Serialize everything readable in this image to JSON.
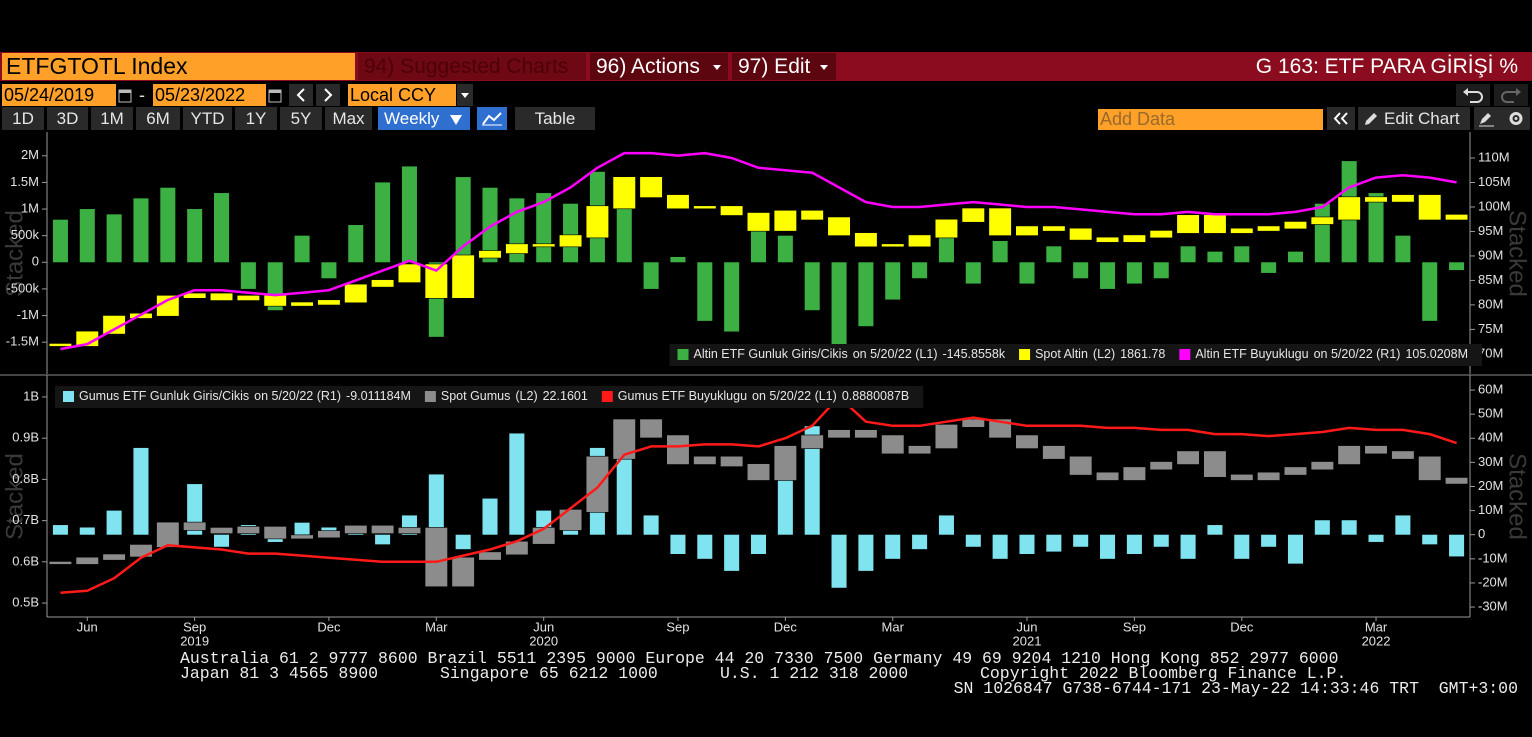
{
  "header": {
    "ticker": "ETFGTOTL Index",
    "suggested": "94) Suggested Charts",
    "actions": "96) Actions",
    "edit": "97) Edit",
    "chart_title": "G 163: ETF PARA GİRİŞİ %"
  },
  "toolbar": {
    "start_date": "05/24/2019",
    "date_separator": "-",
    "end_date": "05/23/2022",
    "currency": "Local CCY",
    "periods": [
      "1D",
      "3D",
      "1M",
      "6M",
      "YTD",
      "1Y",
      "5Y",
      "Max"
    ],
    "frequency": "Weekly",
    "table": "Table",
    "add_data": "Add Data",
    "edit_chart": "Edit Chart"
  },
  "chart_data": [
    {
      "type": "combo",
      "watermark": "Stacked",
      "legend_position": "bottom-right",
      "ylim": [
        -2060000,
        2390000
      ],
      "yticks": [
        {
          "value": -1500000,
          "label": "-1.5M"
        },
        {
          "value": -1000000,
          "label": "-1M"
        },
        {
          "value": -500000,
          "label": "-500k"
        },
        0,
        {
          "value": 500000,
          "label": "500k"
        },
        {
          "value": 1000000,
          "label": "1M"
        },
        {
          "value": 1500000,
          "label": "1.5M"
        },
        {
          "value": 2000000,
          "label": "2M"
        }
      ],
      "y2lim": [
        66300000,
        114700000
      ],
      "y2ticks": [
        {
          "value": 70000000,
          "label": "70M"
        },
        {
          "value": 75000000,
          "label": "75M"
        },
        {
          "value": 80000000,
          "label": "80M"
        },
        {
          "value": 85000000,
          "label": "85M"
        },
        {
          "value": 90000000,
          "label": "90M"
        },
        {
          "value": 95000000,
          "label": "95M"
        },
        {
          "value": 100000000,
          "label": "100M"
        },
        {
          "value": 105000000,
          "label": "105M"
        },
        {
          "value": 110000000,
          "label": "110M"
        }
      ],
      "y3lim": [
        1164,
        2223
      ],
      "series": [
        {
          "name": "Altin ETF Gunluk Giris/Cikis",
          "legend_note": "on 5/20/22 (L1)",
          "last_value_label": "-145.8558k",
          "type": "bar",
          "axis": "y",
          "color": "#3cb043",
          "values": [
            800000,
            1000000,
            900000,
            1200000,
            1400000,
            1000000,
            1300000,
            -500000,
            -900000,
            500000,
            -300000,
            700000,
            1500000,
            1800000,
            -1400000,
            1600000,
            1400000,
            1200000,
            1300000,
            1100000,
            1700000,
            1500000,
            -500000,
            100000,
            -1100000,
            -1300000,
            600000,
            500000,
            -900000,
            -1600000,
            -1200000,
            -700000,
            -300000,
            600000,
            -400000,
            400000,
            -400000,
            300000,
            -300000,
            -500000,
            -400000,
            -300000,
            300000,
            200000,
            300000,
            -200000,
            200000,
            1100000,
            1900000,
            1300000,
            500000,
            -1100000,
            -145855.8
          ]
        },
        {
          "name": "Spot Altin",
          "legend_note": "(L2)",
          "type": "candlestick",
          "axis": "y3",
          "color": "#ffff00",
          "values": [
            1285,
            1340,
            1410,
            1420,
            1500,
            1510,
            1490,
            1500,
            1465,
            1470,
            1480,
            1550,
            1570,
            1640,
            1500,
            1680,
            1700,
            1730,
            1730,
            1770,
            1900,
            2030,
            1950,
            1900,
            1900,
            1870,
            1800,
            1880,
            1850,
            1780,
            1730,
            1730,
            1770,
            1840,
            1890,
            1780,
            1810,
            1800,
            1760,
            1750,
            1770,
            1790,
            1860,
            1790,
            1800,
            1810,
            1830,
            1850,
            1940,
            1930,
            1950,
            1850,
            1861.78
          ]
        },
        {
          "name": "Altin ETF Buyuklugu",
          "legend_note": "on 5/20/22 (R1)",
          "last_value_label": "105.0208M",
          "type": "line",
          "axis": "y2",
          "color": "#ff00ff",
          "values": [
            71000000,
            72000000,
            75000000,
            78000000,
            81000000,
            83000000,
            83000000,
            82500000,
            82000000,
            82500000,
            83000000,
            85000000,
            87000000,
            89000000,
            87000000,
            92000000,
            96000000,
            99000000,
            101000000,
            104000000,
            108000000,
            111000000,
            111000000,
            110500000,
            111000000,
            110000000,
            108000000,
            107500000,
            107000000,
            104000000,
            101000000,
            100000000,
            100000000,
            100500000,
            101000000,
            100500000,
            100000000,
            100000000,
            99500000,
            99000000,
            98500000,
            98500000,
            99000000,
            98500000,
            98500000,
            98500000,
            99000000,
            100000000,
            104000000,
            106000000,
            106500000,
            106000000,
            105020800
          ]
        }
      ]
    },
    {
      "type": "combo",
      "watermark": "Stacked",
      "legend_position": "top-left",
      "ylim": [
        471000000,
        1046000000
      ],
      "yticks": [
        {
          "value": 500000000,
          "label": "0.5B"
        },
        {
          "value": 600000000,
          "label": "0.6B"
        },
        {
          "value": 700000000,
          "label": "0.7B"
        },
        {
          "value": 800000000,
          "label": "0.8B"
        },
        {
          "value": 900000000,
          "label": "0.9B"
        },
        {
          "value": 1000000000,
          "label": "1B"
        }
      ],
      "y2lim": [
        -33300000,
        65000000
      ],
      "y2ticks": [
        {
          "value": -30000000,
          "label": "-30M"
        },
        {
          "value": -20000000,
          "label": "-20M"
        },
        {
          "value": -10000000,
          "label": "-10M"
        },
        0,
        {
          "value": 10000000,
          "label": "10M"
        },
        {
          "value": 20000000,
          "label": "20M"
        },
        {
          "value": 30000000,
          "label": "30M"
        },
        {
          "value": 40000000,
          "label": "40M"
        },
        {
          "value": 50000000,
          "label": "50M"
        },
        {
          "value": 60000000,
          "label": "60M"
        }
      ],
      "y3lim": [
        9.7,
        32
      ],
      "categories": [
        null,
        "Jun",
        null,
        null,
        null,
        "Sep",
        null,
        null,
        null,
        null,
        "Dec",
        null,
        null,
        null,
        "Mar",
        null,
        null,
        null,
        "Jun",
        null,
        null,
        null,
        null,
        "Sep",
        null,
        null,
        null,
        "Dec",
        null,
        null,
        null,
        "Mar",
        null,
        null,
        null,
        null,
        "Jun",
        null,
        null,
        null,
        "Sep",
        null,
        null,
        null,
        "Dec",
        null,
        null,
        null,
        null,
        "Mar",
        null,
        null,
        null
      ],
      "year_categories": [
        null,
        null,
        null,
        null,
        null,
        "2019",
        null,
        null,
        null,
        null,
        null,
        null,
        null,
        null,
        null,
        null,
        null,
        null,
        "2020",
        null,
        null,
        null,
        null,
        null,
        null,
        null,
        null,
        null,
        null,
        null,
        null,
        null,
        null,
        null,
        null,
        null,
        "2021",
        null,
        null,
        null,
        null,
        null,
        null,
        null,
        null,
        null,
        null,
        null,
        null,
        "2022",
        null,
        null,
        null
      ],
      "series": [
        {
          "name": "Gumus ETF Gunluk Giris/Cikis",
          "legend_note": "on 5/20/22 (R1)",
          "last_value_label": "-9.011184M",
          "type": "bar",
          "axis": "y2",
          "color": "#80e4f0",
          "values": [
            4000000,
            3000000,
            10000000,
            36000000,
            4000000,
            21000000,
            -5000000,
            4000000,
            -3000000,
            5000000,
            3000000,
            4000000,
            -4000000,
            8000000,
            25000000,
            -6000000,
            15000000,
            42000000,
            10000000,
            8000000,
            36000000,
            40000000,
            8000000,
            -8000000,
            -10000000,
            -15000000,
            -8000000,
            30000000,
            45000000,
            -22000000,
            -15000000,
            -10000000,
            -6000000,
            8000000,
            -5000000,
            -10000000,
            -8000000,
            -7000000,
            -5000000,
            -10000000,
            -8000000,
            -5000000,
            -10000000,
            4000000,
            -10000000,
            -5000000,
            -12000000,
            6000000,
            6000000,
            -3000000,
            8000000,
            -4000000,
            -9011184
          ]
        },
        {
          "name": "Spot Gumus",
          "legend_note": "(L2)",
          "type": "candlestick",
          "axis": "y3",
          "color": "#8c8c8c",
          "values": [
            14.6,
            15,
            15.3,
            16.2,
            18.3,
            17.8,
            17.5,
            17.9,
            17,
            17.1,
            17.5,
            18,
            17.5,
            17.8,
            12.5,
            15,
            15.5,
            16.5,
            17.8,
            19.5,
            24.5,
            28,
            26.5,
            24,
            24.5,
            23.8,
            22.5,
            25.5,
            26.5,
            27,
            26.5,
            25,
            25.5,
            27.5,
            28,
            26.5,
            25.5,
            24.5,
            23,
            22.5,
            23.5,
            24,
            25,
            22.8,
            22.5,
            23,
            23.5,
            24,
            25.5,
            25,
            24.5,
            22.5,
            22.1601
          ]
        },
        {
          "name": "Gumus ETF Buyuklugu",
          "legend_note": "on 5/20/22 (L1)",
          "last_value_label": "0.8880087B",
          "type": "line",
          "axis": "y",
          "color": "#ff1a1a",
          "values": [
            525000000,
            530000000,
            560000000,
            610000000,
            640000000,
            635000000,
            630000000,
            620000000,
            620000000,
            615000000,
            610000000,
            605000000,
            600000000,
            600000000,
            600000000,
            615000000,
            630000000,
            650000000,
            680000000,
            730000000,
            780000000,
            860000000,
            880000000,
            880000000,
            885000000,
            885000000,
            880000000,
            900000000,
            930000000,
            1000000000,
            940000000,
            930000000,
            930000000,
            940000000,
            950000000,
            940000000,
            930000000,
            930000000,
            930000000,
            925000000,
            925000000,
            920000000,
            920000000,
            910000000,
            910000000,
            905000000,
            910000000,
            915000000,
            925000000,
            920000000,
            920000000,
            910000000,
            888008700
          ]
        }
      ]
    }
  ],
  "footer": {
    "line1": "Australia 61 2 9777 8600 Brazil 5511 2395 9000 Europe 44 20 7330 7500 Germany 49 69 9204 1210 Hong Kong 852 2977 6000",
    "japan": "Japan 81 3 4565 8900",
    "singapore": "Singapore 65 6212 1000",
    "us": "U.S. 1 212 318 2000",
    "copyright": "Copyright 2022 Bloomberg Finance L.P.",
    "session": "SN 1026847 G738-6744-171 23-May-22 14:33:46 TRT  GMT+3:00"
  }
}
